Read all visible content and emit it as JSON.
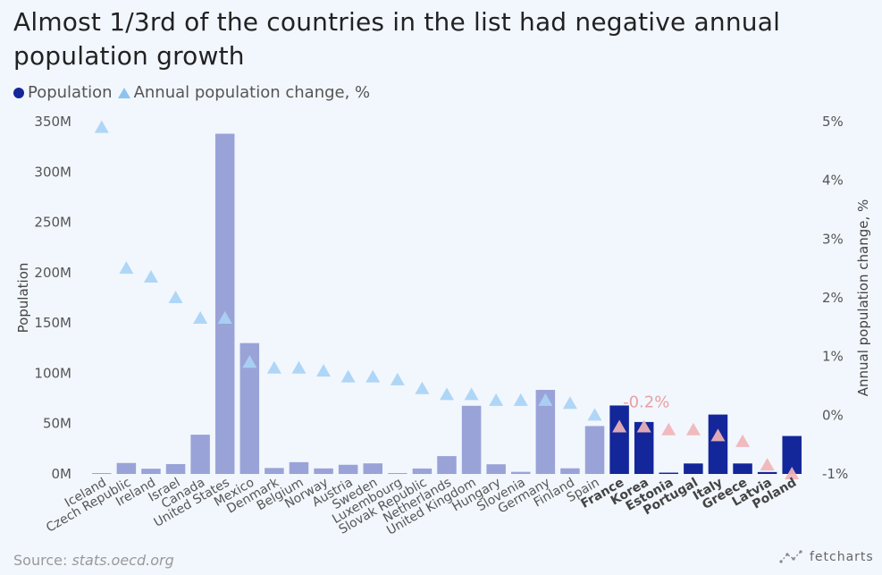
{
  "title": "Almost 1/3rd of the countries in the list had negative annual population growth",
  "legend": {
    "population_label": "Population",
    "change_label": "Annual population change, %"
  },
  "source": {
    "prefix": "Source: ",
    "link": "stats.oecd.org"
  },
  "brand": {
    "name": "fetcharts",
    "icon": "fetcharts-logo-icon"
  },
  "colors": {
    "bar_positive": "#9aa3d8",
    "bar_negative": "#13279a",
    "marker_positive": "#a9d2f5",
    "marker_negative": "#f0b4b8",
    "annotation": "#e8a0a4"
  },
  "chart_data": {
    "type": "bar",
    "categories": [
      "Iceland",
      "Czech Republic",
      "Ireland",
      "Israel",
      "Canada",
      "United States",
      "Mexico",
      "Denmark",
      "Belgium",
      "Norway",
      "Austria",
      "Sweden",
      "Luxembourg",
      "Slovak Republic",
      "Netherlands",
      "United Kingdom",
      "Hungary",
      "Slovenia",
      "Germany",
      "Finland",
      "Spain",
      "France",
      "Korea",
      "Estonia",
      "Portugal",
      "Italy",
      "Greece",
      "Latvia",
      "Poland"
    ],
    "bold_categories": [
      "France",
      "Korea",
      "Estonia",
      "Portugal",
      "Italy",
      "Greece",
      "Latvia",
      "Poland"
    ],
    "series": [
      {
        "name": "Population",
        "axis": "left",
        "values": [
          0.4,
          10.9,
          5.2,
          9.8,
          39.0,
          338.0,
          130.0,
          5.9,
          11.7,
          5.5,
          9.1,
          10.5,
          0.7,
          5.4,
          17.7,
          67.7,
          9.6,
          2.1,
          83.5,
          5.6,
          47.6,
          68.0,
          51.6,
          1.3,
          10.4,
          59.0,
          10.4,
          1.9,
          37.7
        ]
      },
      {
        "name": "Annual population change, %",
        "axis": "right",
        "type": "scatter",
        "values": [
          4.9,
          2.5,
          2.35,
          2.0,
          1.65,
          1.65,
          0.9,
          0.8,
          0.8,
          0.75,
          0.65,
          0.65,
          0.6,
          0.45,
          0.35,
          0.35,
          0.25,
          0.25,
          0.25,
          0.2,
          0.0,
          -0.2,
          -0.2,
          -0.25,
          -0.25,
          -0.35,
          -0.45,
          -0.85,
          -1.0
        ]
      }
    ],
    "annotation": {
      "category": "France",
      "text": "-0.2%"
    },
    "ylabel": "Population",
    "y2label": "Annual population change, %",
    "ylim": [
      0,
      350
    ],
    "y_ticks": [
      "0M",
      "50M",
      "100M",
      "150M",
      "200M",
      "250M",
      "300M",
      "350M"
    ],
    "y2lim": [
      -1,
      5
    ],
    "y2_ticks": [
      "-1%",
      "0%",
      "1%",
      "2%",
      "3%",
      "4%",
      "5%"
    ],
    "grid": false
  }
}
